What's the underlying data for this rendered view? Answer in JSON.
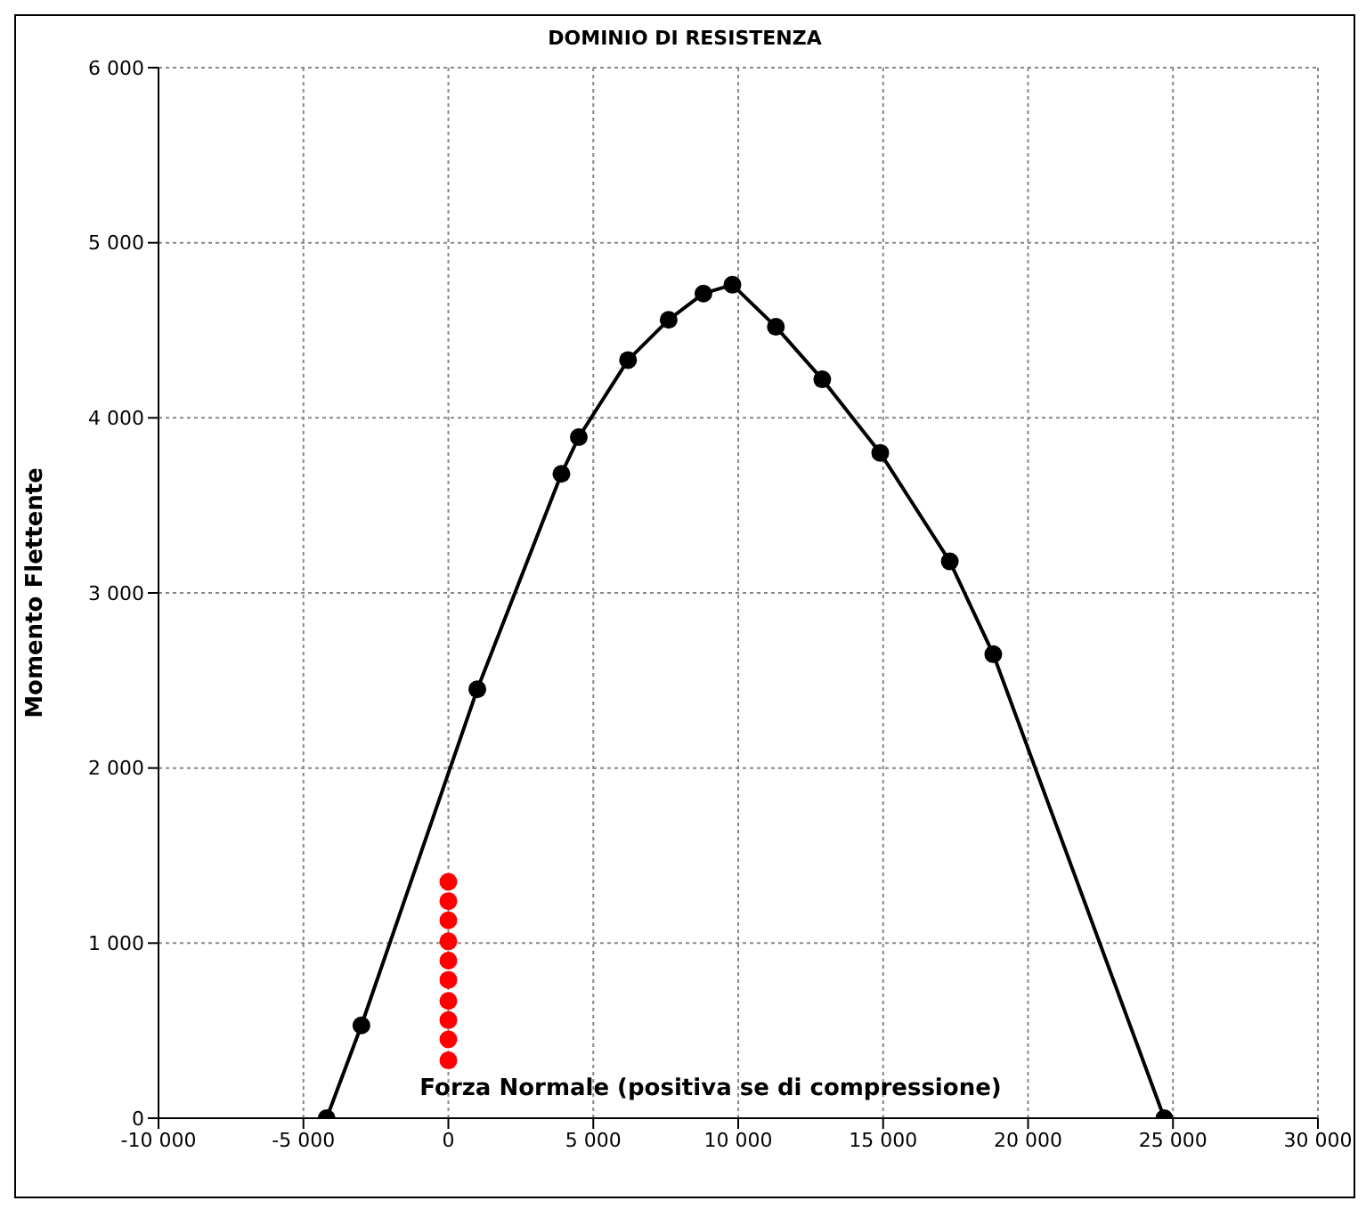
{
  "chart_data": {
    "type": "line",
    "title": "DOMINIO DI RESISTENZA",
    "xlabel": "Forza Normale (positiva se di compressione)",
    "ylabel": "Momento Flettente",
    "xlim": [
      -10000,
      30000
    ],
    "xticks": [
      {
        "value": -10000,
        "label": "-10 000"
      },
      {
        "value": -5000,
        "label": "-5 000"
      },
      0,
      {
        "value": 5000,
        "label": "5 000"
      },
      {
        "value": 10000,
        "label": "10 000"
      },
      {
        "value": 15000,
        "label": "15 000"
      },
      {
        "value": 20000,
        "label": "20 000"
      },
      {
        "value": 25000,
        "label": "25 000"
      },
      {
        "value": 30000,
        "label": "30 000"
      }
    ],
    "ylim": [
      0,
      6000
    ],
    "yticks": [
      0,
      {
        "value": 1000,
        "label": "1 000"
      },
      {
        "value": 2000,
        "label": "2 000"
      },
      {
        "value": 3000,
        "label": "3 000"
      },
      {
        "value": 4000,
        "label": "4 000"
      },
      {
        "value": 5000,
        "label": "5 000"
      },
      {
        "value": 6000,
        "label": "6 000"
      }
    ],
    "grid": true,
    "marker": "circle",
    "line_style": "solid",
    "series": [
      {
        "color": "#000000",
        "x": [
          -4200,
          -3000,
          1000,
          3900,
          4500,
          6200,
          7600,
          8800,
          9800,
          11300,
          12900,
          14900,
          17300,
          18800,
          24700
        ],
        "values": [
          0,
          530,
          2450,
          3680,
          3890,
          4330,
          4560,
          4710,
          4760,
          4520,
          4220,
          3800,
          3180,
          2650,
          0
        ]
      },
      {
        "type": "scatter",
        "color": "#ff0000",
        "x": [
          0,
          0,
          0,
          0,
          0,
          0,
          0,
          0,
          0,
          0
        ],
        "values": [
          330,
          450,
          560,
          670,
          790,
          900,
          1010,
          1130,
          1240,
          1350
        ]
      }
    ]
  }
}
